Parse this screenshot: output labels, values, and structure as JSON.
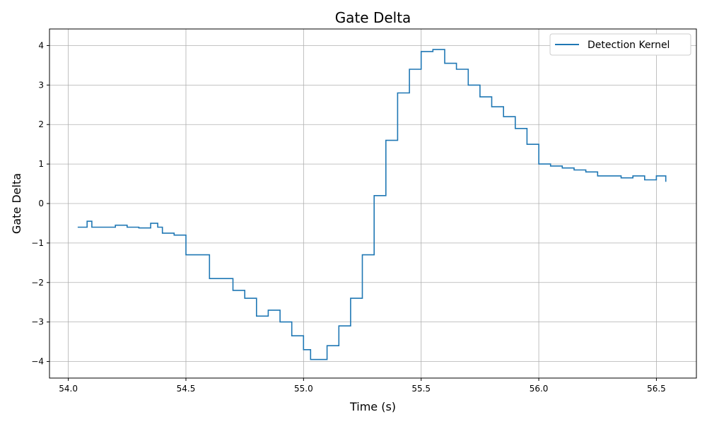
{
  "chart_data": {
    "type": "line",
    "title": "Gate Delta",
    "xlabel": "Time (s)",
    "ylabel": "Gate Delta",
    "xlim": [
      53.92,
      56.67
    ],
    "ylim": [
      -4.42,
      4.42
    ],
    "xticks": [
      54.0,
      54.5,
      55.0,
      55.5,
      56.0,
      56.5
    ],
    "xtick_labels": [
      "54.0",
      "54.5",
      "55.0",
      "55.5",
      "56.0",
      "56.5"
    ],
    "yticks": [
      -4,
      -3,
      -2,
      -1,
      0,
      1,
      2,
      3,
      4
    ],
    "ytick_labels": [
      "−4",
      "−3",
      "−2",
      "−1",
      "0",
      "1",
      "2",
      "3",
      "4"
    ],
    "grid": true,
    "legend_position": "top-right",
    "series_color": "#1f77b4",
    "series": [
      {
        "name": "Detection Kernel",
        "x": [
          54.04,
          54.08,
          54.1,
          54.15,
          54.2,
          54.25,
          54.3,
          54.35,
          54.38,
          54.4,
          54.45,
          54.5,
          54.55,
          54.6,
          54.65,
          54.7,
          54.75,
          54.8,
          54.85,
          54.9,
          54.95,
          55.0,
          55.03,
          55.05,
          55.1,
          55.15,
          55.2,
          55.25,
          55.3,
          55.35,
          55.4,
          55.45,
          55.5,
          55.55,
          55.6,
          55.65,
          55.7,
          55.75,
          55.8,
          55.85,
          55.9,
          55.95,
          56.0,
          56.05,
          56.1,
          56.15,
          56.2,
          56.25,
          56.3,
          56.35,
          56.4,
          56.45,
          56.5,
          56.54
        ],
        "y": [
          -0.6,
          -0.45,
          -0.6,
          -0.6,
          -0.55,
          -0.6,
          -0.62,
          -0.5,
          -0.6,
          -0.75,
          -0.8,
          -1.3,
          -1.3,
          -1.9,
          -1.9,
          -2.2,
          -2.4,
          -2.85,
          -2.7,
          -3.0,
          -3.35,
          -3.7,
          -3.95,
          -3.95,
          -3.6,
          -3.1,
          -2.4,
          -1.3,
          0.2,
          1.6,
          2.8,
          3.4,
          3.85,
          3.9,
          3.55,
          3.4,
          3.0,
          2.7,
          2.45,
          2.2,
          1.9,
          1.5,
          1.0,
          0.95,
          0.9,
          0.85,
          0.8,
          0.7,
          0.7,
          0.65,
          0.7,
          0.6,
          0.7,
          0.55
        ]
      }
    ]
  }
}
